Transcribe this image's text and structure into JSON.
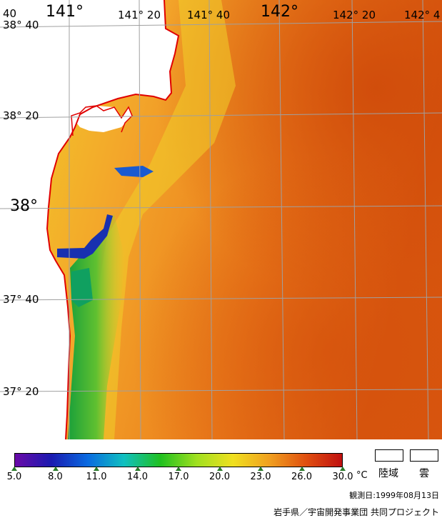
{
  "map": {
    "lon_labels": [
      {
        "text": "141°",
        "size": "big"
      },
      {
        "text": "141° 20",
        "size": "normal"
      },
      {
        "text": "141° 40",
        "size": "normal"
      },
      {
        "text": "142°",
        "size": "big"
      },
      {
        "text": "142° 20",
        "size": "normal"
      },
      {
        "text": "142° 4",
        "size": "normal"
      }
    ],
    "corner_label": "40",
    "lat_labels": [
      {
        "text": "38° 40",
        "size": "normal"
      },
      {
        "text": "38° 20",
        "size": "normal"
      },
      {
        "text": "38°",
        "size": "big"
      },
      {
        "text": "37° 40",
        "size": "normal"
      },
      {
        "text": "37° 20",
        "size": "normal"
      }
    ],
    "colors": {
      "coastline": "#e00000",
      "grid": "#a0a0a0",
      "land": "#ffffff"
    }
  },
  "colorbar": {
    "ticks": [
      "5.0",
      "8.0",
      "11.0",
      "14.0",
      "17.0",
      "20.0",
      "23.0",
      "26.0",
      "30.0"
    ],
    "unit": "°C",
    "stops": [
      "#6a0aa8",
      "#1a1ab0",
      "#0a6ae0",
      "#10c0c0",
      "#20c020",
      "#a0e020",
      "#f0e020",
      "#f0a020",
      "#e05010",
      "#c01010"
    ]
  },
  "legend": {
    "land_label": "陸域",
    "cloud_label": "雲"
  },
  "footer": {
    "observation_date": "観測日:1999年08月13日",
    "credit": "岩手県／宇宙開発事業団 共同プロジェクト"
  }
}
